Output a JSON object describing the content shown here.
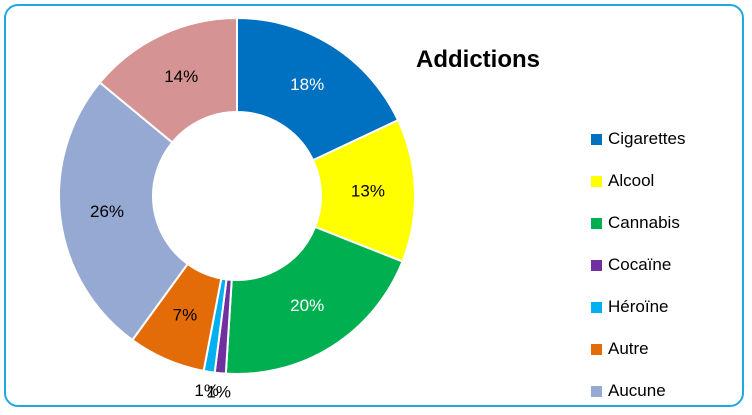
{
  "chart_data": {
    "type": "pie",
    "title": "Addictions",
    "categories": [
      "Cigarettes",
      "Alcool",
      "Cannabis",
      "Cocaïne",
      "Héroïne",
      "Autre",
      "Aucune",
      ""
    ],
    "values": [
      18,
      13,
      20,
      1,
      1,
      7,
      26,
      14
    ],
    "labels": [
      "18%",
      "13%",
      "20%",
      "1%",
      "1%",
      "7%",
      "26%",
      "14%"
    ],
    "colors": [
      "#0070c0",
      "#ffff00",
      "#00b050",
      "#7030a0",
      "#00b0f0",
      "#e36c09",
      "#95a9d2",
      "#d59493"
    ],
    "label_colors": [
      "#ffffff",
      "#000000",
      "#ffffff",
      "#000000",
      "#000000",
      "#000000",
      "#000000",
      "#000000"
    ],
    "legend_placement": "right"
  }
}
